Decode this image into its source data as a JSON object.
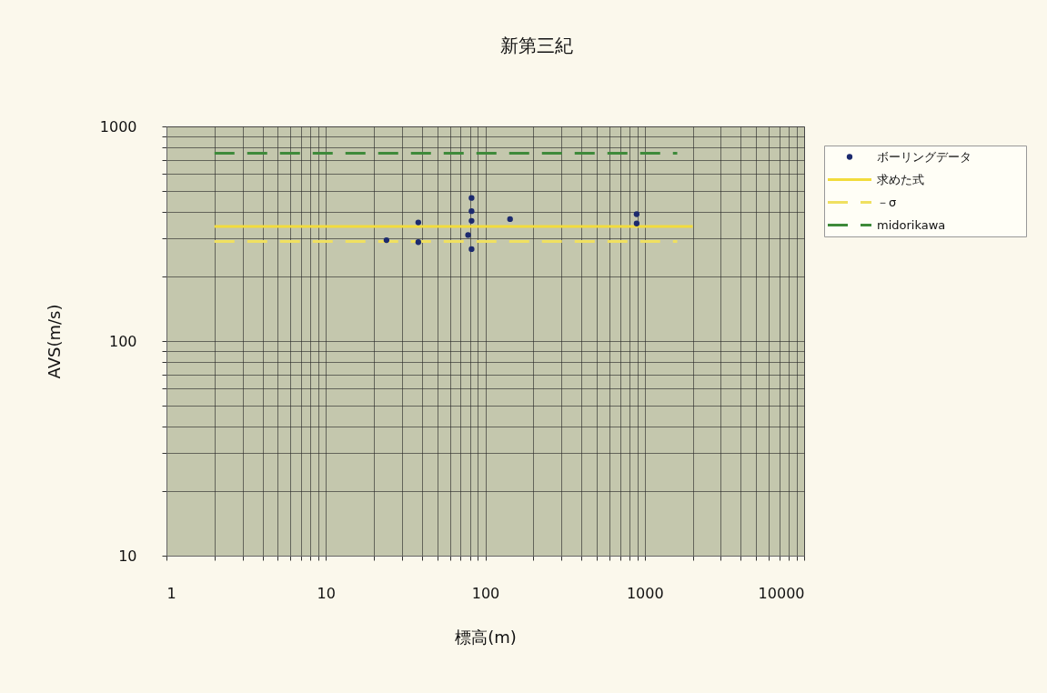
{
  "chart_data": {
    "type": "scatter",
    "title": "新第三紀",
    "xlabel": "標高(m)",
    "ylabel": "AVS(m/s)",
    "log": "xy",
    "grid": true,
    "legend": "right",
    "xlim": [
      1,
      10000
    ],
    "ylim": [
      10,
      1000
    ],
    "xticks": [
      1,
      {
        "value": 2,
        "label": null
      },
      {
        "value": 3,
        "label": null
      },
      {
        "value": 4,
        "label": null
      },
      {
        "value": 5,
        "label": null
      },
      {
        "value": 6,
        "label": null
      },
      {
        "value": 7,
        "label": null
      },
      {
        "value": 8,
        "label": null
      },
      {
        "value": 9,
        "label": null
      },
      10,
      {
        "value": 20,
        "label": null
      },
      {
        "value": 30,
        "label": null
      },
      {
        "value": 40,
        "label": null
      },
      {
        "value": 50,
        "label": null
      },
      {
        "value": 60,
        "label": null
      },
      {
        "value": 70,
        "label": null
      },
      {
        "value": 80,
        "label": null
      },
      {
        "value": 90,
        "label": null
      },
      100,
      {
        "value": 200,
        "label": null
      },
      {
        "value": 300,
        "label": null
      },
      {
        "value": 400,
        "label": null
      },
      {
        "value": 500,
        "label": null
      },
      {
        "value": 600,
        "label": null
      },
      {
        "value": 700,
        "label": null
      },
      {
        "value": 800,
        "label": null
      },
      {
        "value": 900,
        "label": null
      },
      1000,
      {
        "value": 2000,
        "label": null
      },
      {
        "value": 3000,
        "label": null
      },
      {
        "value": 4000,
        "label": null
      },
      {
        "value": 5000,
        "label": null
      },
      {
        "value": 6000,
        "label": null
      },
      {
        "value": 7000,
        "label": null
      },
      {
        "value": 8000,
        "label": null
      },
      {
        "value": 9000,
        "label": null
      },
      10000
    ],
    "yticks": [
      10,
      {
        "value": 20,
        "label": null
      },
      {
        "value": 30,
        "label": null
      },
      {
        "value": 40,
        "label": null
      },
      {
        "value": 50,
        "label": null
      },
      {
        "value": 60,
        "label": null
      },
      {
        "value": 70,
        "label": null
      },
      {
        "value": 80,
        "label": null
      },
      {
        "value": 90,
        "label": null
      },
      100,
      {
        "value": 200,
        "label": null
      },
      {
        "value": 300,
        "label": null
      },
      {
        "value": 400,
        "label": null
      },
      {
        "value": 500,
        "label": null
      },
      {
        "value": 600,
        "label": null
      },
      {
        "value": 700,
        "label": null
      },
      {
        "value": 800,
        "label": null
      },
      {
        "value": 900,
        "label": null
      },
      1000
    ],
    "series": [
      {
        "name": "ボーリングデータ",
        "marker": "circle",
        "color": "#1c2a6e",
        "x": [
          24,
          38,
          38,
          82,
          82,
          82,
          78,
          82,
          143,
          890,
          890
        ],
        "values": [
          295,
          357,
          289,
          464,
          403,
          363,
          312,
          268,
          370,
          390,
          353
        ]
      },
      {
        "name": "求めた式",
        "type": "line",
        "line_style": "solid",
        "color": "#f2dc3c",
        "x": [
          2,
          2000
        ],
        "values": [
          342,
          342
        ]
      },
      {
        "name": "－σ",
        "type": "line",
        "line_style": "dashed",
        "color": "#f0e060",
        "x": [
          2,
          1600
        ],
        "values": [
          291,
          291
        ]
      },
      {
        "name": "midorikawa",
        "type": "line",
        "line_style": "dashed",
        "color": "#3e8a3a",
        "x": [
          2,
          1600
        ],
        "values": [
          750,
          750
        ]
      }
    ]
  }
}
